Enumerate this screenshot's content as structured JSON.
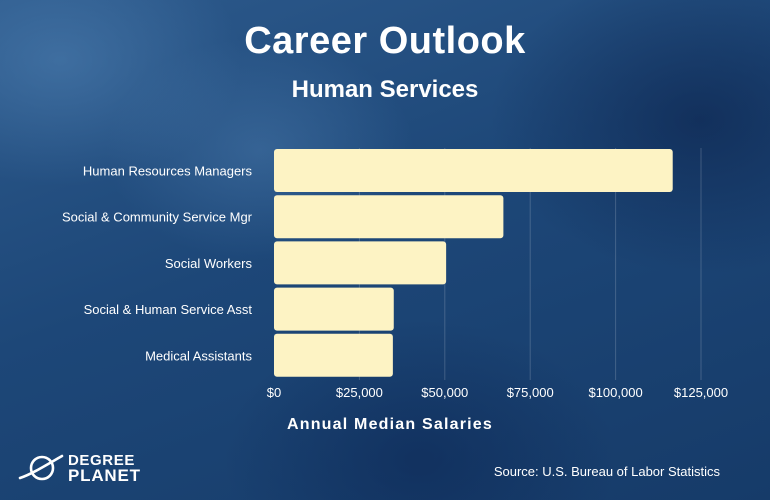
{
  "header": {
    "title": "Career Outlook",
    "subtitle": "Human Services"
  },
  "brand": {
    "logo_line1": "DEGREE",
    "logo_line2": "PLANET"
  },
  "footer": {
    "source": "Source: U.S. Bureau of Labor Statistics"
  },
  "colors": {
    "bar": "#fdf3c4",
    "grid": "rgba(255,255,255,0.18)"
  },
  "chart_data": {
    "type": "bar",
    "orientation": "horizontal",
    "categories": [
      "Human Resources Managers",
      "Social & Community Service Mgr",
      "Social Workers",
      "Social & Human Service Asst",
      "Medical Assistants"
    ],
    "values": [
      116720,
      67150,
      50390,
      35060,
      34800
    ],
    "xlabel": "Annual Median Salaries",
    "ylabel": "",
    "xlim": [
      0,
      125000
    ],
    "ticks": [
      0,
      25000,
      50000,
      75000,
      100000,
      125000
    ],
    "tick_labels": [
      "$0",
      "$25,000",
      "$50,000",
      "$75,000",
      "$100,000",
      "$125,000"
    ],
    "grid": true
  }
}
